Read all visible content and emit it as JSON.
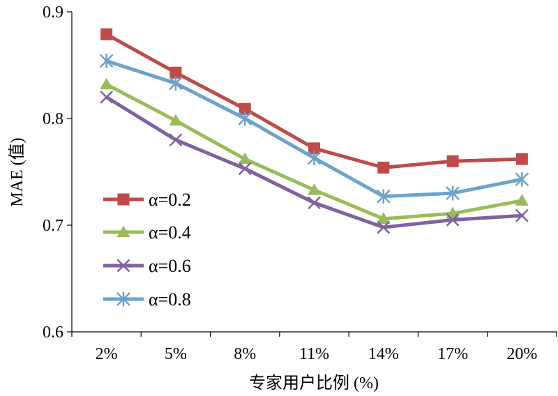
{
  "chart_data": {
    "type": "line",
    "title": "",
    "xlabel": "专家用户比例 (%)",
    "ylabel": "MAE (值)",
    "categories": [
      "2%",
      "5%",
      "8%",
      "11%",
      "14%",
      "17%",
      "20%"
    ],
    "ylim": [
      0.6,
      0.9
    ],
    "yticks": [
      "0.6",
      "0.7",
      "0.8",
      "0.9"
    ],
    "grid": false,
    "legend_position": "left",
    "series": [
      {
        "name": "α=0.2",
        "color": "#BE4B48",
        "marker": "square",
        "values": [
          0.879,
          0.843,
          0.809,
          0.772,
          0.754,
          0.76,
          0.762
        ]
      },
      {
        "name": "α=0.4",
        "color": "#9BBB59",
        "marker": "triangle",
        "values": [
          0.832,
          0.798,
          0.762,
          0.733,
          0.706,
          0.711,
          0.723
        ]
      },
      {
        "name": "α=0.6",
        "color": "#7F629F",
        "marker": "x",
        "values": [
          0.82,
          0.78,
          0.753,
          0.721,
          0.698,
          0.705,
          0.709
        ]
      },
      {
        "name": "α=0.8",
        "color": "#6BA3CC",
        "marker": "star",
        "values": [
          0.854,
          0.833,
          0.8,
          0.763,
          0.727,
          0.73,
          0.743
        ]
      }
    ]
  }
}
